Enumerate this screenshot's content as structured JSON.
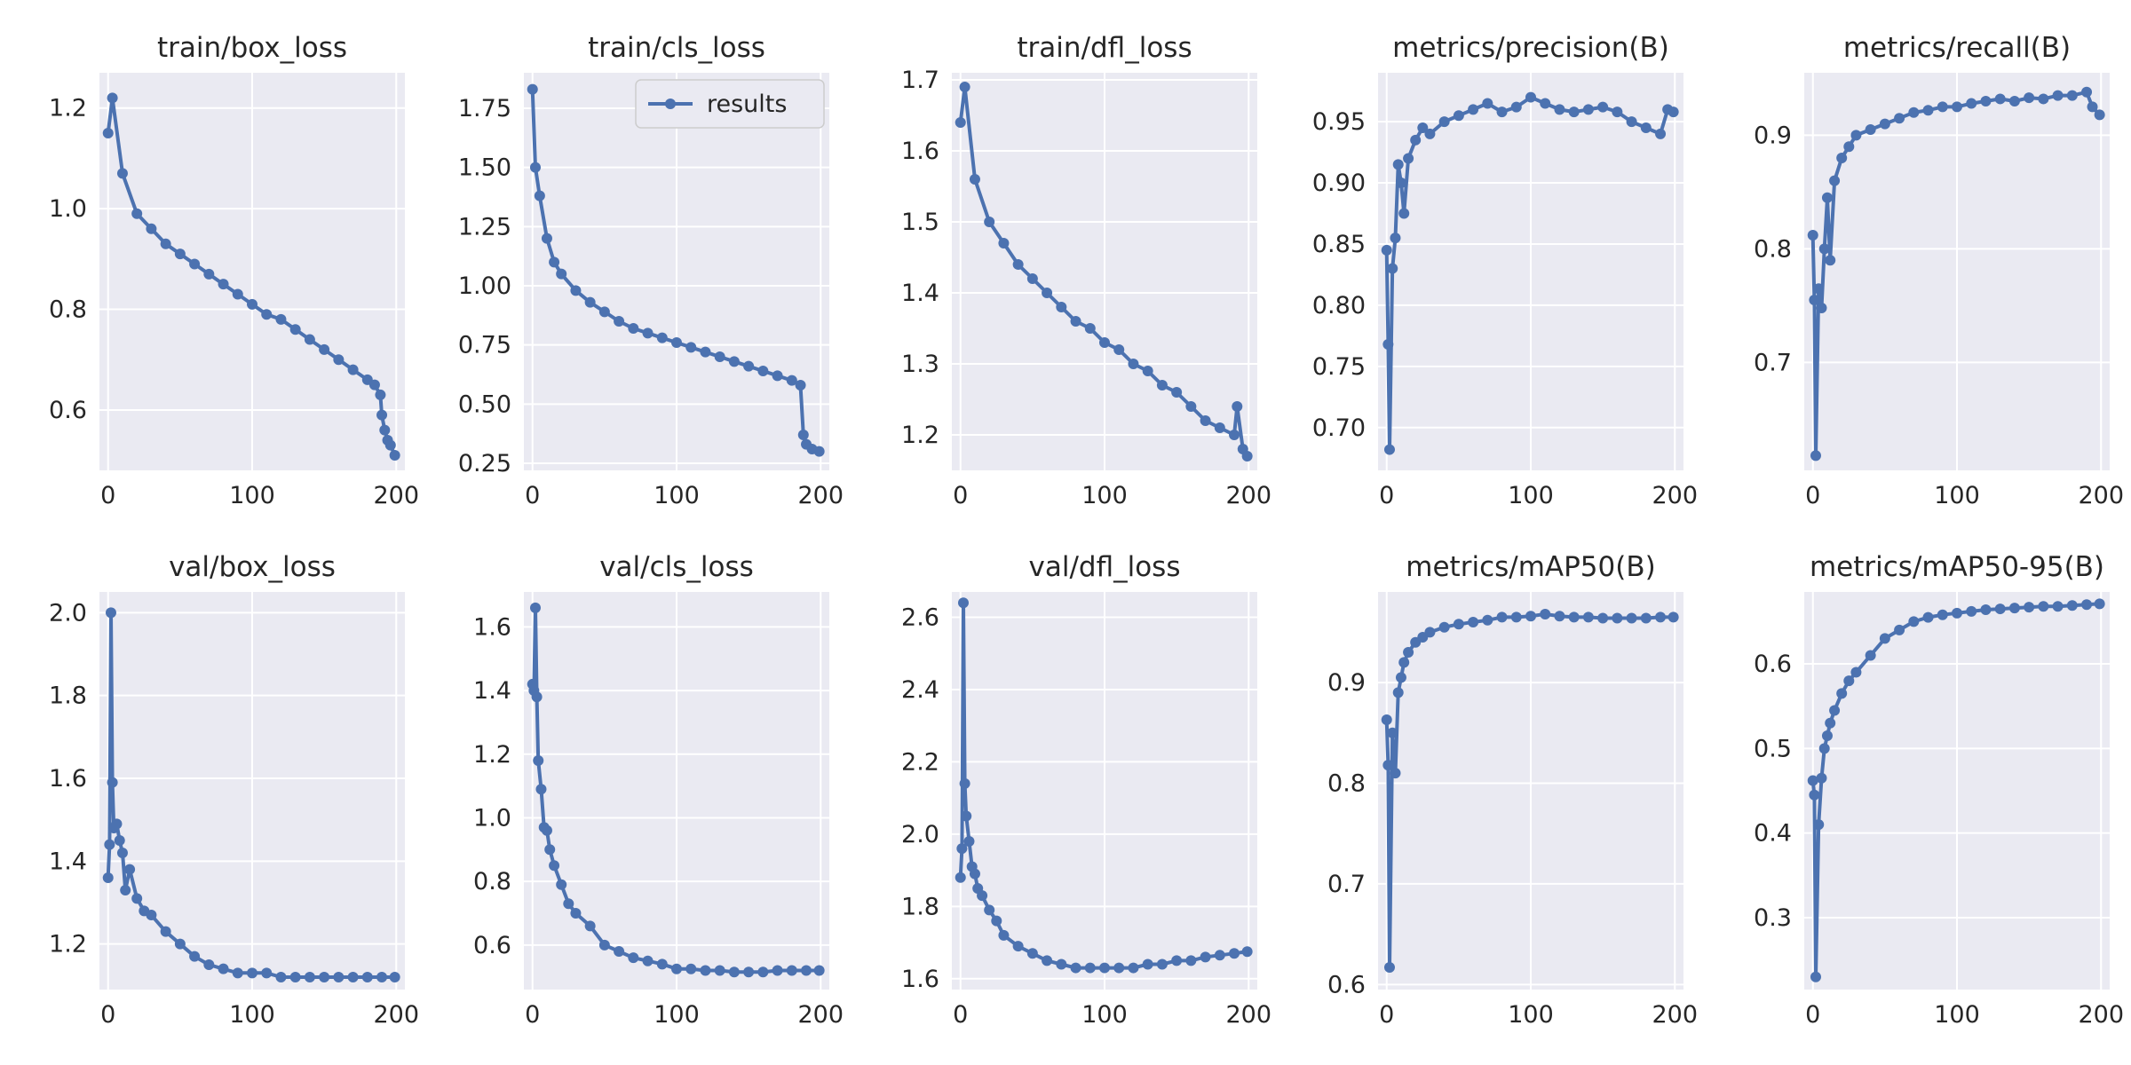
{
  "colors": {
    "line": "#4c72b0",
    "panel_bg": "#eaeaf2",
    "grid": "#ffffff",
    "text": "#262626"
  },
  "chart_data": [
    {
      "type": "line",
      "title": "train/box_loss",
      "grid": true,
      "xticks": [
        0,
        100,
        200
      ],
      "xlim": [
        -6,
        206
      ],
      "yticks": [
        0.6,
        0.8,
        1.0,
        1.2
      ],
      "ylim": [
        0.48,
        1.27
      ],
      "series": [
        {
          "name": "results",
          "x": [
            0,
            3,
            10,
            20,
            30,
            40,
            50,
            60,
            70,
            80,
            90,
            100,
            110,
            120,
            130,
            140,
            150,
            160,
            170,
            180,
            185,
            189,
            190,
            192,
            194,
            196,
            199
          ],
          "y": [
            1.15,
            1.22,
            1.07,
            0.99,
            0.96,
            0.93,
            0.91,
            0.89,
            0.87,
            0.85,
            0.83,
            0.81,
            0.79,
            0.78,
            0.76,
            0.74,
            0.72,
            0.7,
            0.68,
            0.66,
            0.65,
            0.63,
            0.59,
            0.56,
            0.54,
            0.53,
            0.51
          ]
        }
      ]
    },
    {
      "type": "line",
      "title": "train/cls_loss",
      "grid": true,
      "xticks": [
        0,
        100,
        200
      ],
      "xlim": [
        -6,
        206
      ],
      "yticks": [
        0.25,
        0.5,
        0.75,
        1.0,
        1.25,
        1.5,
        1.75
      ],
      "ylim": [
        0.22,
        1.9
      ],
      "legend": {
        "label": "results",
        "loc": "upper right"
      },
      "series": [
        {
          "name": "results",
          "x": [
            0,
            2,
            5,
            10,
            15,
            20,
            30,
            40,
            50,
            60,
            70,
            80,
            90,
            100,
            110,
            120,
            130,
            140,
            150,
            160,
            170,
            180,
            186,
            188,
            190,
            194,
            199
          ],
          "y": [
            1.83,
            1.5,
            1.38,
            1.2,
            1.1,
            1.05,
            0.98,
            0.93,
            0.89,
            0.85,
            0.82,
            0.8,
            0.78,
            0.76,
            0.74,
            0.72,
            0.7,
            0.68,
            0.66,
            0.64,
            0.62,
            0.6,
            0.58,
            0.37,
            0.33,
            0.31,
            0.3
          ]
        }
      ]
    },
    {
      "type": "line",
      "title": "train/dfl_loss",
      "grid": true,
      "xticks": [
        0,
        100,
        200
      ],
      "xlim": [
        -6,
        206
      ],
      "yticks": [
        1.2,
        1.3,
        1.4,
        1.5,
        1.6,
        1.7
      ],
      "ylim": [
        1.15,
        1.71
      ],
      "series": [
        {
          "name": "results",
          "x": [
            0,
            3,
            10,
            20,
            30,
            40,
            50,
            60,
            70,
            80,
            90,
            100,
            110,
            120,
            130,
            140,
            150,
            160,
            170,
            180,
            190,
            192,
            196,
            199
          ],
          "y": [
            1.64,
            1.69,
            1.56,
            1.5,
            1.47,
            1.44,
            1.42,
            1.4,
            1.38,
            1.36,
            1.35,
            1.33,
            1.32,
            1.3,
            1.29,
            1.27,
            1.26,
            1.24,
            1.22,
            1.21,
            1.2,
            1.24,
            1.18,
            1.17
          ]
        }
      ]
    },
    {
      "type": "line",
      "title": "metrics/precision(B)",
      "grid": true,
      "xticks": [
        0,
        100,
        200
      ],
      "xlim": [
        -6,
        206
      ],
      "yticks": [
        0.7,
        0.75,
        0.8,
        0.85,
        0.9,
        0.95
      ],
      "ylim": [
        0.665,
        0.99
      ],
      "series": [
        {
          "name": "results",
          "x": [
            0,
            1,
            2,
            4,
            6,
            8,
            10,
            12,
            15,
            20,
            25,
            30,
            40,
            50,
            60,
            70,
            80,
            90,
            100,
            110,
            120,
            130,
            140,
            150,
            160,
            170,
            180,
            190,
            195,
            199
          ],
          "y": [
            0.845,
            0.768,
            0.682,
            0.83,
            0.855,
            0.915,
            0.9,
            0.875,
            0.92,
            0.935,
            0.945,
            0.94,
            0.95,
            0.955,
            0.96,
            0.965,
            0.958,
            0.962,
            0.97,
            0.965,
            0.96,
            0.958,
            0.96,
            0.962,
            0.958,
            0.95,
            0.945,
            0.94,
            0.96,
            0.958
          ]
        }
      ]
    },
    {
      "type": "line",
      "title": "metrics/recall(B)",
      "grid": true,
      "xticks": [
        0,
        100,
        200
      ],
      "xlim": [
        -6,
        206
      ],
      "yticks": [
        0.7,
        0.8,
        0.9
      ],
      "ylim": [
        0.605,
        0.955
      ],
      "series": [
        {
          "name": "results",
          "x": [
            0,
            1,
            2,
            4,
            6,
            8,
            10,
            12,
            15,
            20,
            25,
            30,
            40,
            50,
            60,
            70,
            80,
            90,
            100,
            110,
            120,
            130,
            140,
            150,
            160,
            170,
            180,
            190,
            194,
            199
          ],
          "y": [
            0.812,
            0.755,
            0.618,
            0.765,
            0.748,
            0.8,
            0.845,
            0.79,
            0.86,
            0.88,
            0.89,
            0.9,
            0.905,
            0.91,
            0.915,
            0.92,
            0.922,
            0.925,
            0.925,
            0.928,
            0.93,
            0.932,
            0.93,
            0.933,
            0.932,
            0.935,
            0.935,
            0.938,
            0.925,
            0.918
          ]
        }
      ]
    },
    {
      "type": "line",
      "title": "val/box_loss",
      "grid": true,
      "xticks": [
        0,
        100,
        200
      ],
      "xlim": [
        -6,
        206
      ],
      "yticks": [
        1.2,
        1.4,
        1.6,
        1.8,
        2.0
      ],
      "ylim": [
        1.09,
        2.05
      ],
      "series": [
        {
          "name": "results",
          "x": [
            0,
            1,
            2,
            3,
            4,
            6,
            8,
            10,
            12,
            15,
            20,
            25,
            30,
            40,
            50,
            60,
            70,
            80,
            90,
            100,
            110,
            120,
            130,
            140,
            150,
            160,
            170,
            180,
            190,
            199
          ],
          "y": [
            1.36,
            1.44,
            2.0,
            1.59,
            1.48,
            1.49,
            1.45,
            1.42,
            1.33,
            1.38,
            1.31,
            1.28,
            1.27,
            1.23,
            1.2,
            1.17,
            1.15,
            1.14,
            1.13,
            1.13,
            1.13,
            1.12,
            1.12,
            1.12,
            1.12,
            1.12,
            1.12,
            1.12,
            1.12,
            1.12
          ]
        }
      ]
    },
    {
      "type": "line",
      "title": "val/cls_loss",
      "grid": true,
      "xticks": [
        0,
        100,
        200
      ],
      "xlim": [
        -6,
        206
      ],
      "yticks": [
        0.6,
        0.8,
        1.0,
        1.2,
        1.4,
        1.6
      ],
      "ylim": [
        0.46,
        1.71
      ],
      "series": [
        {
          "name": "results",
          "x": [
            0,
            1,
            2,
            3,
            4,
            6,
            8,
            10,
            12,
            15,
            20,
            25,
            30,
            40,
            50,
            60,
            70,
            80,
            90,
            100,
            110,
            120,
            130,
            140,
            150,
            160,
            170,
            180,
            190,
            199
          ],
          "y": [
            1.42,
            1.4,
            1.66,
            1.38,
            1.18,
            1.09,
            0.97,
            0.96,
            0.9,
            0.85,
            0.79,
            0.73,
            0.7,
            0.66,
            0.6,
            0.58,
            0.56,
            0.55,
            0.54,
            0.525,
            0.525,
            0.52,
            0.52,
            0.515,
            0.515,
            0.515,
            0.52,
            0.52,
            0.52,
            0.52
          ]
        }
      ]
    },
    {
      "type": "line",
      "title": "val/dfl_loss",
      "grid": true,
      "xticks": [
        0,
        100,
        200
      ],
      "xlim": [
        -6,
        206
      ],
      "yticks": [
        1.6,
        1.8,
        2.0,
        2.2,
        2.4,
        2.6
      ],
      "ylim": [
        1.57,
        2.67
      ],
      "series": [
        {
          "name": "results",
          "x": [
            0,
            1,
            2,
            3,
            4,
            6,
            8,
            10,
            12,
            15,
            20,
            25,
            30,
            40,
            50,
            60,
            70,
            80,
            90,
            100,
            110,
            120,
            130,
            140,
            150,
            160,
            170,
            180,
            190,
            199
          ],
          "y": [
            1.88,
            1.96,
            2.64,
            2.14,
            2.05,
            1.98,
            1.91,
            1.89,
            1.85,
            1.83,
            1.79,
            1.76,
            1.72,
            1.69,
            1.67,
            1.65,
            1.64,
            1.63,
            1.63,
            1.63,
            1.63,
            1.63,
            1.64,
            1.64,
            1.65,
            1.65,
            1.66,
            1.665,
            1.67,
            1.675
          ]
        }
      ]
    },
    {
      "type": "line",
      "title": "metrics/mAP50(B)",
      "grid": true,
      "xticks": [
        0,
        100,
        200
      ],
      "xlim": [
        -6,
        206
      ],
      "yticks": [
        0.6,
        0.7,
        0.8,
        0.9
      ],
      "ylim": [
        0.595,
        0.99
      ],
      "series": [
        {
          "name": "results",
          "x": [
            0,
            1,
            2,
            4,
            6,
            8,
            10,
            12,
            15,
            20,
            25,
            30,
            40,
            50,
            60,
            70,
            80,
            90,
            100,
            110,
            120,
            130,
            140,
            150,
            160,
            170,
            180,
            190,
            199
          ],
          "y": [
            0.863,
            0.818,
            0.617,
            0.85,
            0.81,
            0.89,
            0.905,
            0.92,
            0.93,
            0.94,
            0.945,
            0.95,
            0.955,
            0.958,
            0.96,
            0.962,
            0.965,
            0.965,
            0.966,
            0.968,
            0.966,
            0.965,
            0.965,
            0.964,
            0.964,
            0.964,
            0.964,
            0.965,
            0.965
          ]
        }
      ]
    },
    {
      "type": "line",
      "title": "metrics/mAP50-95(B)",
      "grid": true,
      "xticks": [
        0,
        100,
        200
      ],
      "xlim": [
        -6,
        206
      ],
      "yticks": [
        0.3,
        0.4,
        0.5,
        0.6
      ],
      "ylim": [
        0.215,
        0.685
      ],
      "series": [
        {
          "name": "results",
          "x": [
            0,
            1,
            2,
            4,
            6,
            8,
            10,
            12,
            15,
            20,
            25,
            30,
            40,
            50,
            60,
            70,
            80,
            90,
            100,
            110,
            120,
            130,
            140,
            150,
            160,
            170,
            180,
            190,
            199
          ],
          "y": [
            0.462,
            0.445,
            0.23,
            0.41,
            0.465,
            0.5,
            0.515,
            0.53,
            0.545,
            0.565,
            0.58,
            0.59,
            0.61,
            0.63,
            0.64,
            0.65,
            0.655,
            0.658,
            0.66,
            0.662,
            0.664,
            0.665,
            0.666,
            0.667,
            0.668,
            0.668,
            0.669,
            0.67,
            0.671
          ]
        }
      ]
    }
  ]
}
